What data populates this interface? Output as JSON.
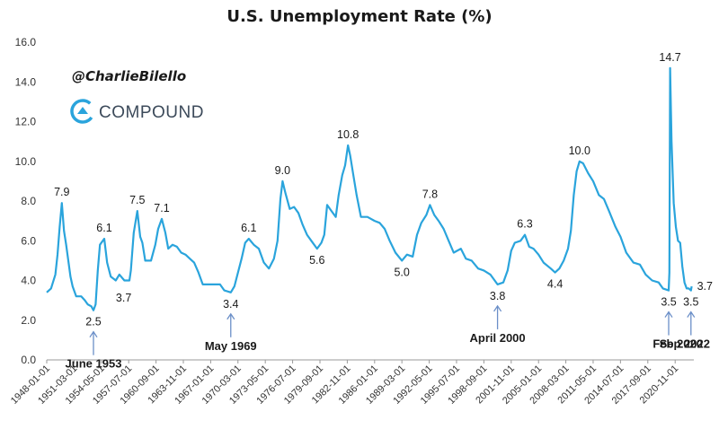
{
  "chart_data": {
    "type": "line",
    "title": "U.S. Unemployment Rate (%)",
    "ylim": [
      0,
      16
    ],
    "yticks": [
      "0.0",
      "2.0",
      "4.0",
      "6.0",
      "8.0",
      "10.0",
      "12.0",
      "14.0",
      "16.0"
    ],
    "xticks": [
      "1948-01-01",
      "1951-03-01",
      "1954-05-01",
      "1957-07-01",
      "1960-09-01",
      "1963-11-01",
      "1967-01-01",
      "1970-03-01",
      "1973-05-01",
      "1976-07-01",
      "1979-09-01",
      "1982-11-01",
      "1986-01-01",
      "1989-03-01",
      "1992-05-01",
      "1995-07-01",
      "1998-09-01",
      "2001-11-01",
      "2005-01-01",
      "2008-03-01",
      "2011-05-01",
      "2014-07-01",
      "2017-09-01",
      "2020-11-01"
    ],
    "grid": false,
    "series": [
      {
        "color": "#2aa4dc",
        "points": [
          [
            "1948-01-01",
            3.4
          ],
          [
            "1948-07-01",
            3.6
          ],
          [
            "1949-01-01",
            4.3
          ],
          [
            "1949-04-01",
            5.3
          ],
          [
            "1949-07-01",
            6.7
          ],
          [
            "1949-10-01",
            7.9
          ],
          [
            "1950-01-01",
            6.5
          ],
          [
            "1950-04-01",
            5.8
          ],
          [
            "1950-07-01",
            5.0
          ],
          [
            "1950-10-01",
            4.2
          ],
          [
            "1951-01-01",
            3.7
          ],
          [
            "1951-06-01",
            3.2
          ],
          [
            "1952-01-01",
            3.2
          ],
          [
            "1952-06-01",
            3.0
          ],
          [
            "1952-10-01",
            2.8
          ],
          [
            "1953-03-01",
            2.7
          ],
          [
            "1953-06-01",
            2.5
          ],
          [
            "1953-09-01",
            2.8
          ],
          [
            "1953-12-01",
            4.5
          ],
          [
            "1954-03-01",
            5.8
          ],
          [
            "1954-09-01",
            6.1
          ],
          [
            "1955-01-01",
            4.9
          ],
          [
            "1955-06-01",
            4.2
          ],
          [
            "1956-01-01",
            4.0
          ],
          [
            "1956-06-01",
            4.3
          ],
          [
            "1957-01-01",
            4.0
          ],
          [
            "1957-08-01",
            4.0
          ],
          [
            "1957-10-01",
            4.5
          ],
          [
            "1958-02-01",
            6.4
          ],
          [
            "1958-07-01",
            7.5
          ],
          [
            "1958-11-01",
            6.2
          ],
          [
            "1959-02-01",
            5.9
          ],
          [
            "1959-06-01",
            5.0
          ],
          [
            "1960-02-01",
            5.0
          ],
          [
            "1960-08-01",
            5.8
          ],
          [
            "1960-12-01",
            6.6
          ],
          [
            "1961-05-01",
            7.1
          ],
          [
            "1961-10-01",
            6.4
          ],
          [
            "1962-02-01",
            5.6
          ],
          [
            "1962-08-01",
            5.8
          ],
          [
            "1963-02-01",
            5.7
          ],
          [
            "1963-08-01",
            5.4
          ],
          [
            "1964-02-01",
            5.3
          ],
          [
            "1964-08-01",
            5.1
          ],
          [
            "1965-02-01",
            4.9
          ],
          [
            "1965-08-01",
            4.4
          ],
          [
            "1966-02-01",
            3.8
          ],
          [
            "1966-08-01",
            3.8
          ],
          [
            "1967-02-01",
            3.8
          ],
          [
            "1967-08-01",
            3.8
          ],
          [
            "1968-02-01",
            3.8
          ],
          [
            "1968-08-01",
            3.5
          ],
          [
            "1969-05-01",
            3.4
          ],
          [
            "1969-10-01",
            3.7
          ],
          [
            "1970-03-01",
            4.4
          ],
          [
            "1970-08-01",
            5.1
          ],
          [
            "1971-01-01",
            5.9
          ],
          [
            "1971-06-01",
            6.1
          ],
          [
            "1972-01-01",
            5.8
          ],
          [
            "1972-08-01",
            5.6
          ],
          [
            "1973-03-01",
            4.9
          ],
          [
            "1973-10-01",
            4.6
          ],
          [
            "1974-05-01",
            5.1
          ],
          [
            "1974-10-01",
            6.0
          ],
          [
            "1975-02-01",
            8.1
          ],
          [
            "1975-05-01",
            9.0
          ],
          [
            "1975-09-01",
            8.4
          ],
          [
            "1976-03-01",
            7.6
          ],
          [
            "1976-09-01",
            7.7
          ],
          [
            "1977-03-01",
            7.4
          ],
          [
            "1977-09-01",
            6.8
          ],
          [
            "1978-03-01",
            6.3
          ],
          [
            "1978-09-01",
            6.0
          ],
          [
            "1979-05-01",
            5.6
          ],
          [
            "1979-11-01",
            5.9
          ],
          [
            "1980-03-01",
            6.3
          ],
          [
            "1980-07-01",
            7.8
          ],
          [
            "1981-01-01",
            7.5
          ],
          [
            "1981-07-01",
            7.2
          ],
          [
            "1981-11-01",
            8.3
          ],
          [
            "1982-04-01",
            9.3
          ],
          [
            "1982-08-01",
            9.8
          ],
          [
            "1982-12-01",
            10.8
          ],
          [
            "1983-03-01",
            10.3
          ],
          [
            "1983-07-01",
            9.4
          ],
          [
            "1983-12-01",
            8.3
          ],
          [
            "1984-06-01",
            7.2
          ],
          [
            "1985-03-01",
            7.2
          ],
          [
            "1986-01-01",
            7.0
          ],
          [
            "1986-08-01",
            6.9
          ],
          [
            "1987-03-01",
            6.6
          ],
          [
            "1987-10-01",
            6.0
          ],
          [
            "1988-06-01",
            5.4
          ],
          [
            "1989-03-01",
            5.0
          ],
          [
            "1989-10-01",
            5.3
          ],
          [
            "1990-06-01",
            5.2
          ],
          [
            "1990-12-01",
            6.3
          ],
          [
            "1991-06-01",
            6.9
          ],
          [
            "1992-01-01",
            7.3
          ],
          [
            "1992-06-01",
            7.8
          ],
          [
            "1992-12-01",
            7.3
          ],
          [
            "1993-06-01",
            7.0
          ],
          [
            "1994-01-01",
            6.6
          ],
          [
            "1994-08-01",
            6.0
          ],
          [
            "1995-03-01",
            5.4
          ],
          [
            "1996-01-01",
            5.6
          ],
          [
            "1996-08-01",
            5.1
          ],
          [
            "1997-04-01",
            5.0
          ],
          [
            "1998-01-01",
            4.6
          ],
          [
            "1998-09-01",
            4.5
          ],
          [
            "1999-06-01",
            4.3
          ],
          [
            "2000-04-01",
            3.8
          ],
          [
            "2000-12-01",
            3.9
          ],
          [
            "2001-06-01",
            4.5
          ],
          [
            "2001-11-01",
            5.5
          ],
          [
            "2002-04-01",
            5.9
          ],
          [
            "2002-12-01",
            6.0
          ],
          [
            "2003-06-01",
            6.3
          ],
          [
            "2003-12-01",
            5.7
          ],
          [
            "2004-06-01",
            5.6
          ],
          [
            "2005-01-01",
            5.3
          ],
          [
            "2005-08-01",
            4.9
          ],
          [
            "2006-06-01",
            4.6
          ],
          [
            "2006-12-01",
            4.4
          ],
          [
            "2007-06-01",
            4.6
          ],
          [
            "2007-12-01",
            5.0
          ],
          [
            "2008-06-01",
            5.6
          ],
          [
            "2008-10-01",
            6.5
          ],
          [
            "2009-02-01",
            8.3
          ],
          [
            "2009-06-01",
            9.5
          ],
          [
            "2009-10-01",
            10.0
          ],
          [
            "2010-03-01",
            9.9
          ],
          [
            "2010-10-01",
            9.4
          ],
          [
            "2011-05-01",
            9.0
          ],
          [
            "2012-01-01",
            8.3
          ],
          [
            "2012-08-01",
            8.1
          ],
          [
            "2013-03-01",
            7.5
          ],
          [
            "2013-12-01",
            6.7
          ],
          [
            "2014-07-01",
            6.2
          ],
          [
            "2015-03-01",
            5.4
          ],
          [
            "2016-01-01",
            4.9
          ],
          [
            "2016-10-01",
            4.8
          ],
          [
            "2017-06-01",
            4.3
          ],
          [
            "2018-03-01",
            4.0
          ],
          [
            "2018-12-01",
            3.9
          ],
          [
            "2019-06-01",
            3.6
          ],
          [
            "2020-02-01",
            3.5
          ],
          [
            "2020-03-01",
            4.4
          ],
          [
            "2020-04-01",
            14.7
          ],
          [
            "2020-06-01",
            11.0
          ],
          [
            "2020-09-01",
            7.9
          ],
          [
            "2020-12-01",
            6.7
          ],
          [
            "2021-03-01",
            6.0
          ],
          [
            "2021-06-01",
            5.9
          ],
          [
            "2021-09-01",
            4.7
          ],
          [
            "2021-12-01",
            3.9
          ],
          [
            "2022-03-01",
            3.6
          ],
          [
            "2022-06-01",
            3.6
          ],
          [
            "2022-09-01",
            3.5
          ],
          [
            "2022-10-01",
            3.7
          ]
        ]
      }
    ],
    "value_labels": [
      {
        "text": "7.9",
        "x": "1949-10-01",
        "y": 7.9,
        "pos": "above"
      },
      {
        "text": "2.5",
        "x": "1953-06-01",
        "y": 2.5,
        "pos": "below"
      },
      {
        "text": "6.1",
        "x": "1954-09-01",
        "y": 6.1,
        "pos": "above"
      },
      {
        "text": "3.7",
        "x": "1956-12-01",
        "y": 3.7,
        "pos": "below"
      },
      {
        "text": "7.5",
        "x": "1958-07-01",
        "y": 7.5,
        "pos": "above"
      },
      {
        "text": "7.1",
        "x": "1961-05-01",
        "y": 7.1,
        "pos": "above"
      },
      {
        "text": "3.4",
        "x": "1969-05-01",
        "y": 3.4,
        "pos": "below"
      },
      {
        "text": "6.1",
        "x": "1971-06-01",
        "y": 6.1,
        "pos": "above"
      },
      {
        "text": "9.0",
        "x": "1975-05-01",
        "y": 9.0,
        "pos": "above"
      },
      {
        "text": "5.6",
        "x": "1979-05-01",
        "y": 5.6,
        "pos": "below"
      },
      {
        "text": "10.8",
        "x": "1982-12-01",
        "y": 10.8,
        "pos": "above"
      },
      {
        "text": "5.0",
        "x": "1989-03-01",
        "y": 5.0,
        "pos": "below"
      },
      {
        "text": "7.8",
        "x": "1992-06-01",
        "y": 7.8,
        "pos": "above"
      },
      {
        "text": "3.8",
        "x": "2000-04-01",
        "y": 3.8,
        "pos": "below"
      },
      {
        "text": "6.3",
        "x": "2003-06-01",
        "y": 6.3,
        "pos": "above"
      },
      {
        "text": "4.4",
        "x": "2006-12-01",
        "y": 4.4,
        "pos": "below"
      },
      {
        "text": "10.0",
        "x": "2009-10-01",
        "y": 10.0,
        "pos": "above"
      },
      {
        "text": "14.7",
        "x": "2020-04-01",
        "y": 14.7,
        "pos": "above"
      },
      {
        "text": "3.5",
        "x": "2020-02-01",
        "y": 3.5,
        "pos": "below"
      },
      {
        "text": "3.7",
        "x": "2022-10-01",
        "y": 3.7,
        "pos": "right"
      },
      {
        "text": "3.5",
        "x": "2022-09-01",
        "y": 3.5,
        "pos": "below"
      }
    ],
    "event_labels": [
      {
        "text": "June 1953",
        "x": "1953-06-01",
        "y": 2.5
      },
      {
        "text": "May 1969",
        "x": "1969-05-01",
        "y": 3.4
      },
      {
        "text": "April 2000",
        "x": "2000-04-01",
        "y": 3.8
      },
      {
        "text": "Feb 2020",
        "x": "2020-02-01",
        "y": 3.5
      },
      {
        "text": "Sep 2022",
        "x": "2022-09-01",
        "y": 3.5
      }
    ]
  },
  "overlay": {
    "handle": "@CharlieBilello",
    "brand": "COMPOUND",
    "brand_color": "#2aa4dc"
  }
}
